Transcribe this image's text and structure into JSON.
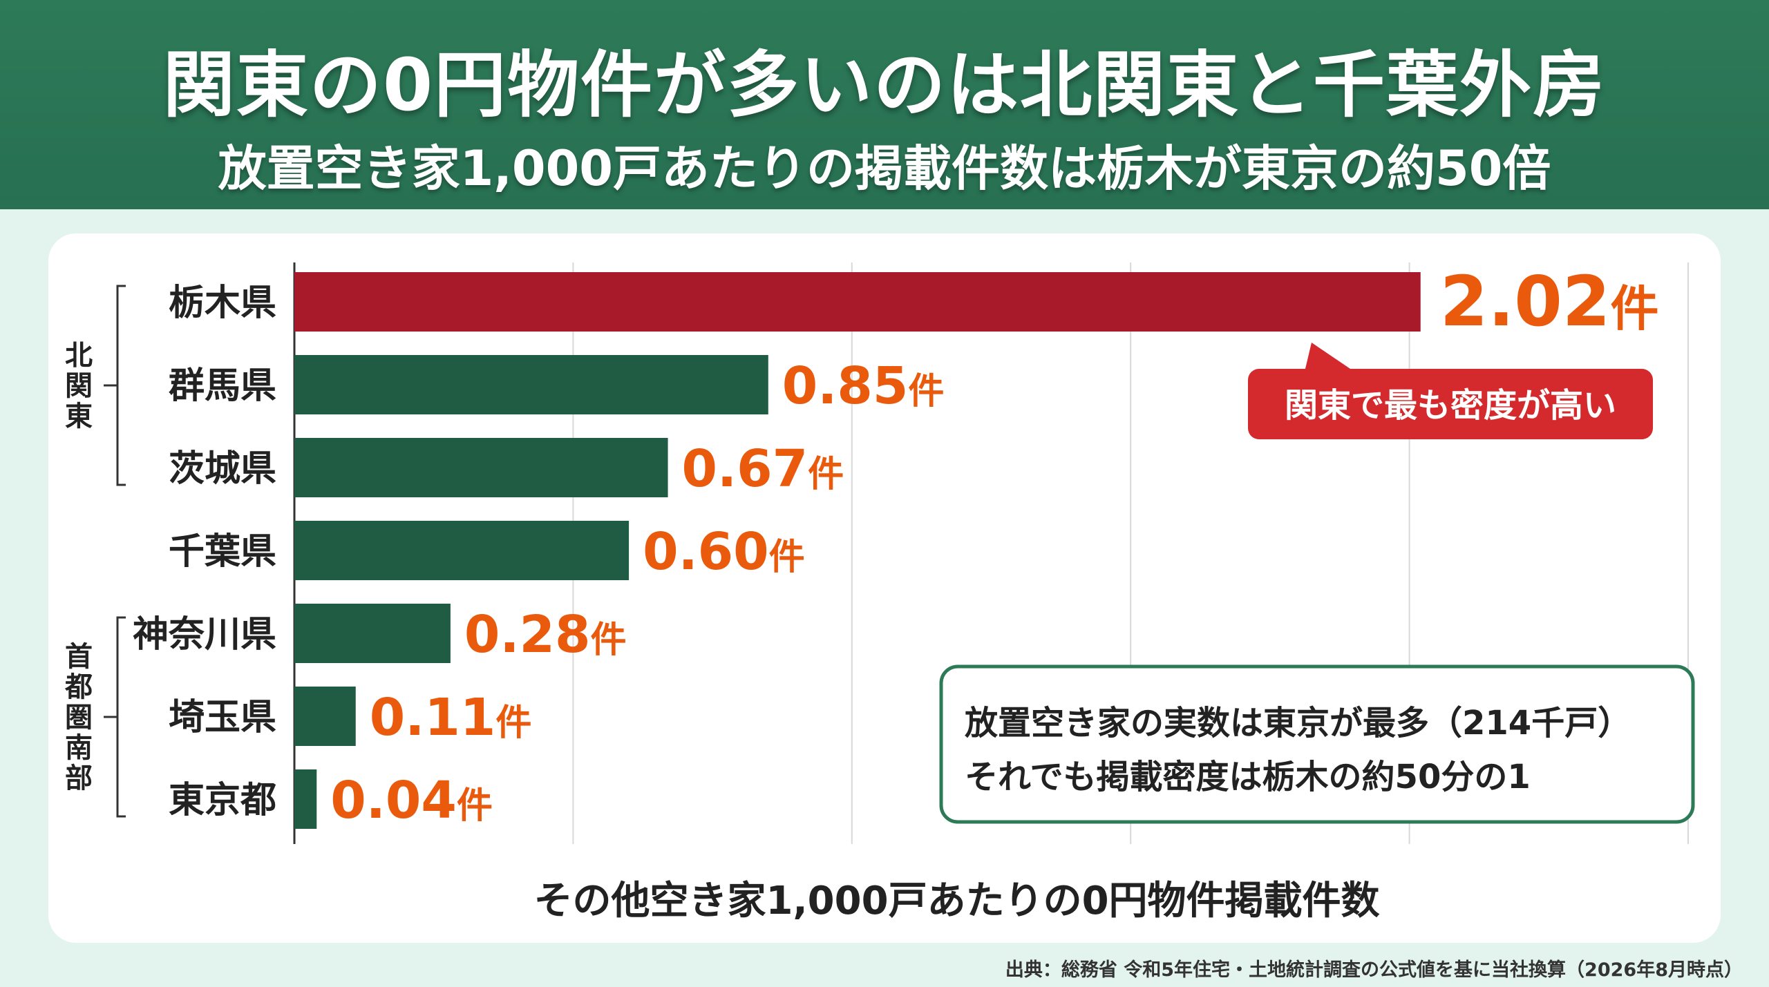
{
  "header": {
    "title": "関東の0円物件が多いのは北関東と千葉外房",
    "subtitle": "放置空き家1,000戸あたりの掲載件数は栃木が東京の約50倍"
  },
  "chart_data": {
    "type": "bar",
    "orientation": "horizontal",
    "categories": [
      "栃木県",
      "群馬県",
      "茨城県",
      "千葉県",
      "神奈川県",
      "埼玉県",
      "東京都"
    ],
    "values": [
      2.02,
      0.85,
      0.67,
      0.6,
      0.28,
      0.11,
      0.04
    ],
    "value_labels": [
      "2.02",
      "0.85",
      "0.67",
      "0.60",
      "0.28",
      "0.11",
      "0.04"
    ],
    "unit": "件",
    "xlabel": "その他空き家1,000戸あたりの0円物件掲載件数",
    "xlim": [
      0,
      2.5
    ],
    "x_gridlines": [
      0,
      0.5,
      1.0,
      1.5,
      2.0,
      2.5
    ],
    "grid": true,
    "highlight_index": 0,
    "colors": {
      "highlight": "#a8192a",
      "default": "#1f5c43",
      "label": "#ea5a0c"
    },
    "groups": [
      {
        "label": "北関東",
        "members": [
          0,
          1,
          2
        ]
      },
      {
        "label": "首都圏南部",
        "members": [
          4,
          5,
          6
        ]
      }
    ],
    "callout": "関東で最も密度が高い",
    "note_lines": [
      "放置空き家の実数は東京が最多（214千戸）",
      "それでも掲載密度は栃木の約50分の1"
    ]
  },
  "source": "出典：総務省 令和5年住宅・土地統計調査の公式値を基に当社換算（2026年8月時点）",
  "colors": {
    "header_bg": "#2d7a58",
    "page_bg": "#e3f4ee",
    "accent_orange": "#ea5a0c",
    "accent_red": "#d42a2d"
  }
}
